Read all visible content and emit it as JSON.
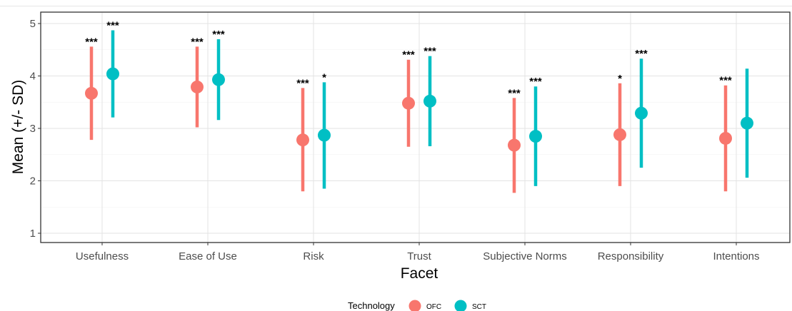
{
  "chart_data": {
    "type": "scatter",
    "subtype": "point-range",
    "xlabel": "Facet",
    "ylabel": "Mean (+/- SD)",
    "ylim": [
      0.9,
      5.2
    ],
    "yticks": [
      1,
      2,
      3,
      4,
      5
    ],
    "grid": true,
    "legend": {
      "title": "Technology",
      "placement": "bottom"
    },
    "categories": [
      "Usefulness",
      "Ease of Use",
      "Risk",
      "Trust",
      "Subjective Norms",
      "Responsibility",
      "Intentions"
    ],
    "series": [
      {
        "name": "OFC",
        "color": "#F8766D",
        "mean": [
          3.67,
          3.79,
          2.78,
          3.48,
          2.68,
          2.88,
          2.81
        ],
        "lower": [
          2.78,
          3.02,
          1.8,
          2.65,
          1.77,
          1.9,
          1.8
        ],
        "upper": [
          4.56,
          4.56,
          3.77,
          4.31,
          3.58,
          3.86,
          3.82
        ],
        "significance": [
          "***",
          "***",
          "***",
          "***",
          "***",
          "*",
          "***"
        ]
      },
      {
        "name": "SCT",
        "color": "#00BFC4",
        "mean": [
          4.04,
          3.93,
          2.87,
          3.52,
          2.85,
          3.29,
          3.1
        ],
        "lower": [
          3.21,
          3.16,
          1.85,
          2.66,
          1.9,
          2.25,
          2.06
        ],
        "upper": [
          4.87,
          4.7,
          3.88,
          4.38,
          3.8,
          4.33,
          4.14
        ],
        "significance": [
          "***",
          "***",
          "*",
          "***",
          "***",
          "***",
          ""
        ]
      }
    ]
  }
}
